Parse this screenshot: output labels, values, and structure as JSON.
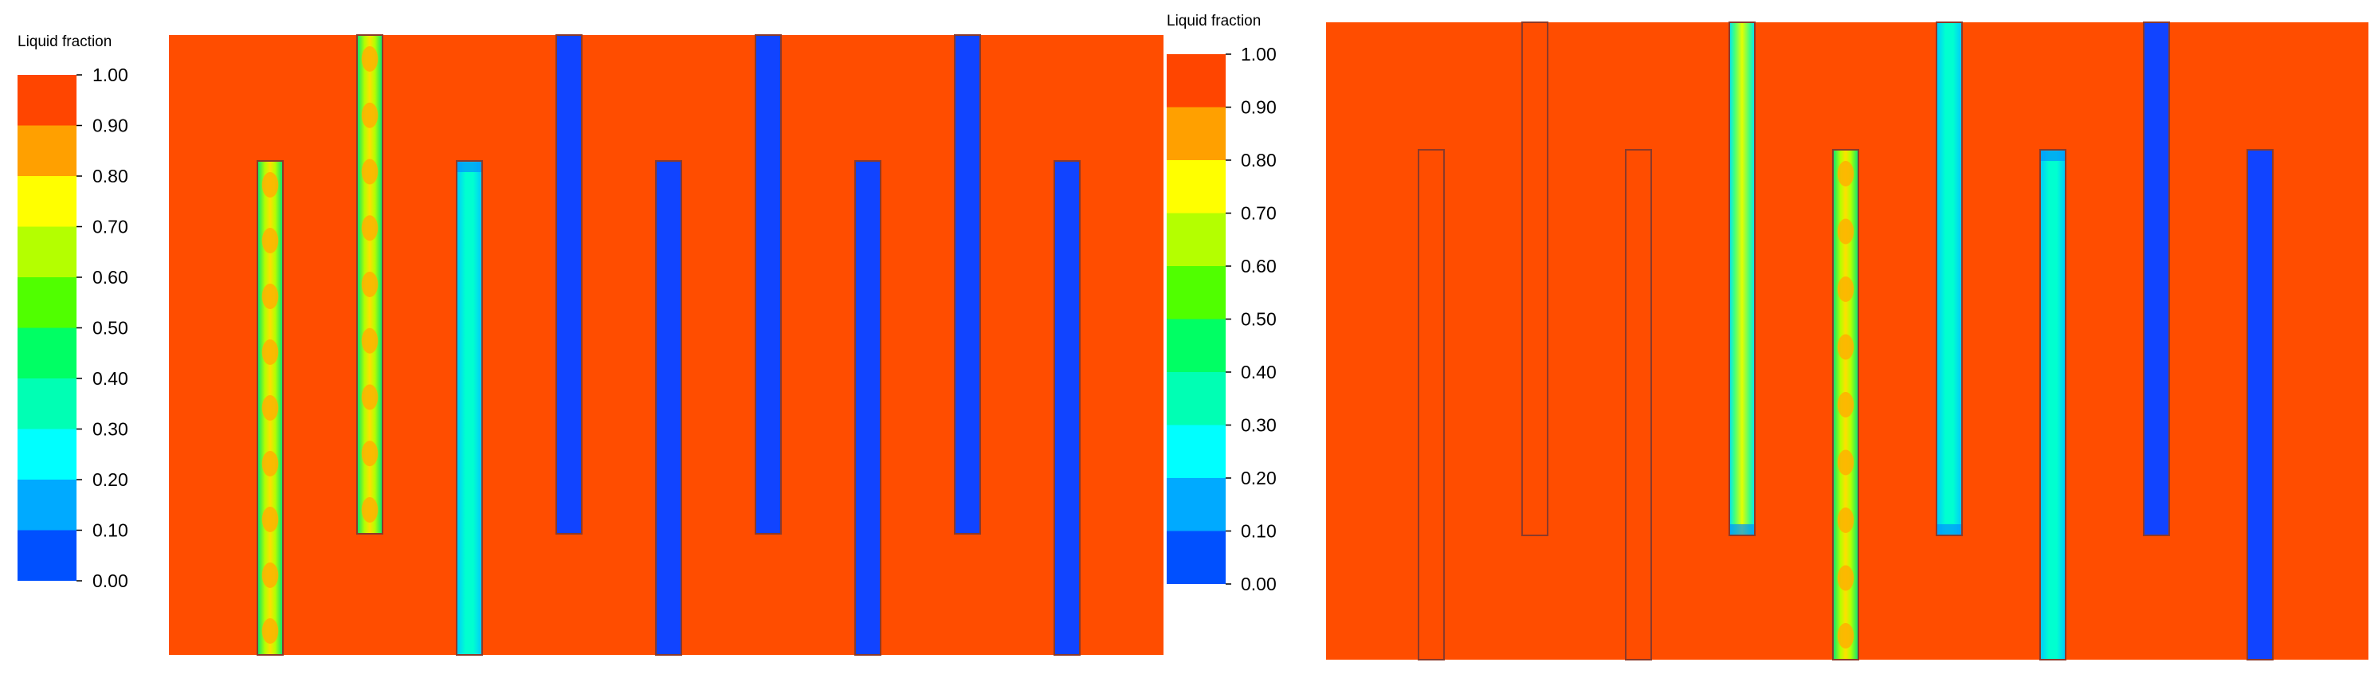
{
  "colorbar": {
    "title": "Liquid fraction",
    "ticks": [
      "1.00",
      "0.90",
      "0.80",
      "0.70",
      "0.60",
      "0.50",
      "0.40",
      "0.30",
      "0.20",
      "0.10",
      "0.00"
    ],
    "band_colors": [
      "#FF4500",
      "#FFA000",
      "#FFFF00",
      "#B4FF00",
      "#50FF00",
      "#00FF64",
      "#00FFB4",
      "#00FFFF",
      "#00AAFF",
      "#0050FF"
    ]
  },
  "colors": {
    "melted": "#FF4D00",
    "solid": "#1144FF",
    "outline": "#8B3A2A"
  },
  "panels": [
    {
      "fins": [
        {
          "from": "bottom",
          "state": "partially-melted"
        },
        {
          "from": "top",
          "state": "partially-melted"
        },
        {
          "from": "bottom",
          "state": "mostly-solid"
        },
        {
          "from": "top",
          "state": "solid"
        },
        {
          "from": "bottom",
          "state": "solid"
        },
        {
          "from": "top",
          "state": "solid"
        },
        {
          "from": "bottom",
          "state": "solid"
        },
        {
          "from": "top",
          "state": "solid"
        },
        {
          "from": "bottom",
          "state": "solid"
        }
      ]
    },
    {
      "fins": [
        {
          "from": "bottom",
          "state": "melted"
        },
        {
          "from": "top",
          "state": "melted"
        },
        {
          "from": "bottom",
          "state": "melted"
        },
        {
          "from": "top",
          "state": "melted-tip-solid"
        },
        {
          "from": "bottom",
          "state": "partially-melted"
        },
        {
          "from": "top",
          "state": "mostly-solid"
        },
        {
          "from": "bottom",
          "state": "mostly-solid"
        },
        {
          "from": "top",
          "state": "solid"
        },
        {
          "from": "bottom",
          "state": "solid"
        }
      ]
    }
  ]
}
